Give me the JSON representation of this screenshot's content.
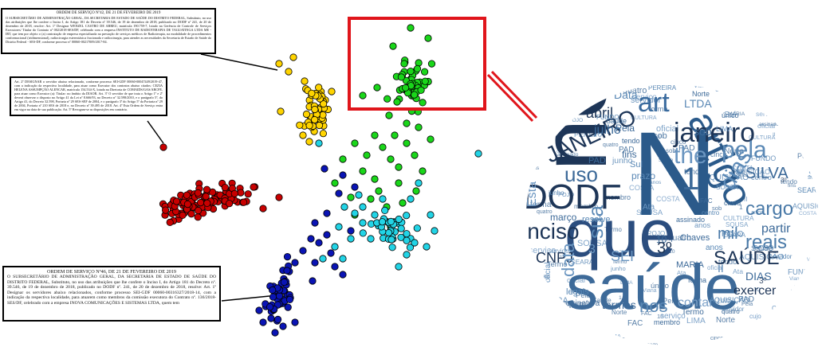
{
  "documents": [
    {
      "id": "top",
      "title": "ORDEM DE SERVIÇO Nº42, DE 21 DE FEVEREIRO DE 2019",
      "body": "O SUBSECRETÁRIO DE ADMINISTRAÇÃO GERAL, DA SECRETARIA DE ESTADO DE SAÚDE DO DISTRITO FEDERAL, Substituto, no uso das atribuições que lhe confere o Inciso I, do Artigo 181 do Decreto nº 39.546, de 19 de dezembro de 2018, publicado no DODF nº 241, de 20 de dezembro de 2018, resolve: Art. 1º Designar WENZEL CASTRO DE ABREU, matrícula 190.759-7, lotado na Gerência de Controle de Serviços Executores/ Titular do Contrato nº 002/2018-SES/DF, celebrado com a empresa INSTITUTO DE RADIOTERAPIA DE TAGUATINGA LTDA ME - IRT, que tem por objeto o (a) contratação de empresa especializada na prestação de serviços médicos de Radioterapia, na modalidade de procedimentos conformacional (tridimensional), radiocirurgia estereotáxica fracionada e radiocirurgia, para atender as necessidades da Secretaria de Estado de Saúde do Distrito Federal - SES-DF, conforme processo nº 00060-00217009/2017-84."
    },
    {
      "id": "mid",
      "title": "",
      "body": "Art. 2º DESIGNAR o servidor abaixo relacionado, conforme processo SEI-GDF 00060-00047449/2019-47, com a indicação da respectiva localidade, para atuar como Executor dos contratos abaixo citados: CEZIA HELENA ASSUMPÇÃO ALENCAR, matrícula 154.534-X, lotada na Diretoria de COMAIDS/GAS/ARCFE, para atuar como Executor (a): Titular: no âmbito da DIAOR. Art. 3º O servidor de que trata o Artigo 1º e 2º deverá observar o disposto no Artigo 41 da Lei nº 8.666/93, no Decreto nº 32.598/2010, e o parágrafo 5º, do Artigo 41, do Decreto 32.598, Portaria nº 29 SES-SEF de 2004, e o parágrafo 3º do Artigo 5º da Portaria nº 29 de 2004, Portaria nº 210 SES de 2018 e, no Decreto nº 39.495 de 2018. Art. 4º Esta Ordem de Serviço entra em vigor na data de sua publicação. Art. 5º Revogam-se as disposições em contrário."
    },
    {
      "id": "bot",
      "title": "ORDEM DE SERVIÇO Nº46, DE 21 DE FEVEREIRO DE 2019",
      "body": "O SUBSECRETÁRIO DE ADMINISTRAÇÃO GERAL, DA SECRETARIA DE ESTADO DE SAÚDE DO DISTRITO FEDERAL, Substituto, no uso das atribuições que lhe confere o Inciso I, do Artigo 181 do Decreto nº. 39.546, de 19 de dezembro de 2018, publicado no DODF nº. 241, de 20 de dezembro de 2018, resolve: Art. 1º Designar os servidores abaixo relacionados, conforme processo SEI-GDF 00060-00316327/2018-14, com a indicação da respectiva localidade, para atuarem como membros da comissão executora do Contrato nº. 136/2018-SES/DF, celebrado com a empresa INOVA COMUNICAÇÕES E SISTEMAS LTDA, quem tem"
    }
  ],
  "colors": {
    "red": "#c80000",
    "yellow": "#ffd400",
    "green": "#1ad61a",
    "cyan": "#22d4e6",
    "blue": "#0a14b4",
    "zoom_frame": "#e0151b"
  },
  "word_cloud": [
    {
      "w": "no",
      "c": "#1d3557"
    },
    {
      "w": "N",
      "c": "#2b5a8a"
    },
    {
      "w": "que",
      "c": "#2b4d7e"
    },
    {
      "w": "saúde",
      "c": "#3d6a99"
    },
    {
      "w": "DODF",
      "c": "#1d3557"
    },
    {
      "w": "artigo",
      "c": "#2b5a8a"
    },
    {
      "w": "janeiro",
      "c": "#1d3557"
    },
    {
      "w": "JANEIRO",
      "c": "#1d3557"
    },
    {
      "w": "art",
      "c": "#3a6b9e"
    },
    {
      "w": "pela",
      "c": "#5a88b5"
    },
    {
      "w": "dias",
      "c": "#5a88b5"
    },
    {
      "w": "inciso",
      "c": "#1d3557"
    },
    {
      "w": "uso",
      "c": "#3d6a99"
    },
    {
      "w": "SAÚDE",
      "c": "#1d3557"
    },
    {
      "w": "cargo",
      "c": "#4a7aa8"
    },
    {
      "w": "the",
      "c": "#6a95c0"
    },
    {
      "w": "CNPJ",
      "c": "#1d3557"
    },
    {
      "w": "reais",
      "c": "#4a7aa8"
    },
    {
      "w": "nos",
      "c": "#5a88b5"
    },
    {
      "w": "SEI",
      "c": "#6a95c0"
    },
    {
      "w": "abril",
      "c": "#1d3557"
    },
    {
      "w": "julho",
      "c": "#3d6a99"
    },
    {
      "w": "SILVA",
      "c": "#3d6a99"
    },
    {
      "w": "sua",
      "c": "#5a88b5"
    },
    {
      "w": "data",
      "c": "#6a95c0"
    },
    {
      "w": "mil",
      "c": "#4a7aa8"
    },
    {
      "w": "exercer",
      "c": "#1d3557"
    },
    {
      "w": "contar",
      "c": "#7aa0c8"
    },
    {
      "w": "termos",
      "c": "#3d6a99"
    },
    {
      "w": "DIAS",
      "c": "#3d6a99"
    },
    {
      "w": "LTDA",
      "c": "#5a88b5"
    },
    {
      "w": "Esta",
      "c": "#6a95c0"
    },
    {
      "w": "Data",
      "c": "#5a88b5"
    },
    {
      "w": "partir",
      "c": "#3d6a99"
    },
    {
      "w": "legais",
      "c": "#5a88b5"
    },
    {
      "w": "assinatura",
      "c": "#3d6a99"
    },
    {
      "w": "março",
      "c": "#3d6a99"
    },
    {
      "w": "resolve",
      "c": "#5a88b5"
    },
    {
      "w": "prazo",
      "c": "#5a88b5"
    },
    {
      "w": "Chaves",
      "c": "#3d6a99"
    },
    {
      "w": "MARIA",
      "c": "#3d6a99"
    },
    {
      "w": "anos",
      "c": "#5a88b5"
    },
    {
      "w": "fins",
      "c": "#3d6a99"
    },
    {
      "w": "Sul",
      "c": "#5a88b5"
    },
    {
      "w": "PAD",
      "c": "#3d6a99"
    },
    {
      "w": "serviço",
      "c": "#7aa0c8"
    },
    {
      "w": "membro",
      "c": "#3d6a99"
    },
    {
      "w": "Termo",
      "c": "#3d6a99"
    },
    {
      "w": "AQUISIÇÃO",
      "c": "#5a88b5"
    },
    {
      "w": "forma",
      "c": "#3d6a99"
    },
    {
      "w": "Ata",
      "c": "#6a95c0"
    },
    {
      "w": "POJO",
      "c": "#5a88b5"
    },
    {
      "w": "cinco",
      "c": "#3d6a99"
    },
    {
      "w": "SEARA",
      "c": "#5a88b5"
    },
    {
      "w": "Norte",
      "c": "#3d6a99"
    },
    {
      "w": "PEREIRA",
      "c": "#5a88b5"
    },
    {
      "w": "único",
      "c": "#3d6a99"
    },
    {
      "w": "Viana",
      "c": "#6a95c0"
    },
    {
      "w": "junho",
      "c": "#5a88b5"
    },
    {
      "w": "oficial",
      "c": "#6a95c0"
    },
    {
      "w": "sob",
      "c": "#3d6a99"
    },
    {
      "w": "Pela",
      "c": "#3d6a99"
    },
    {
      "w": "tendo",
      "c": "#3d6a99"
    },
    {
      "w": "assinado",
      "c": "#3d6a99"
    },
    {
      "w": "centro",
      "c": "#5a88b5"
    },
    {
      "w": "servidor",
      "c": "#5a88b5"
    },
    {
      "w": "quatro",
      "c": "#3d6a99"
    },
    {
      "w": "FUNDO",
      "c": "#5a88b5"
    },
    {
      "w": "SOUSA",
      "c": "#6a95c0"
    },
    {
      "w": "COSTA",
      "c": "#7aa0c8"
    },
    {
      "w": "Saúde",
      "c": "#3d6a99"
    },
    {
      "w": "CULTURA",
      "c": "#6a95c0"
    },
    {
      "w": "FAC",
      "c": "#3d6a99"
    },
    {
      "w": "10",
      "c": "#3d6a99"
    },
    {
      "w": "3º",
      "c": "#1d3557"
    },
    {
      "w": "3",
      "c": "#6a95c0"
    },
    {
      "w": "1",
      "c": "#3d6a99"
    },
    {
      "w": "II",
      "c": "#5a88b5"
    },
    {
      "w": "LIMA",
      "c": "#6a95c0"
    },
    {
      "w": "cujo",
      "c": "#7aa0c8"
    }
  ]
}
